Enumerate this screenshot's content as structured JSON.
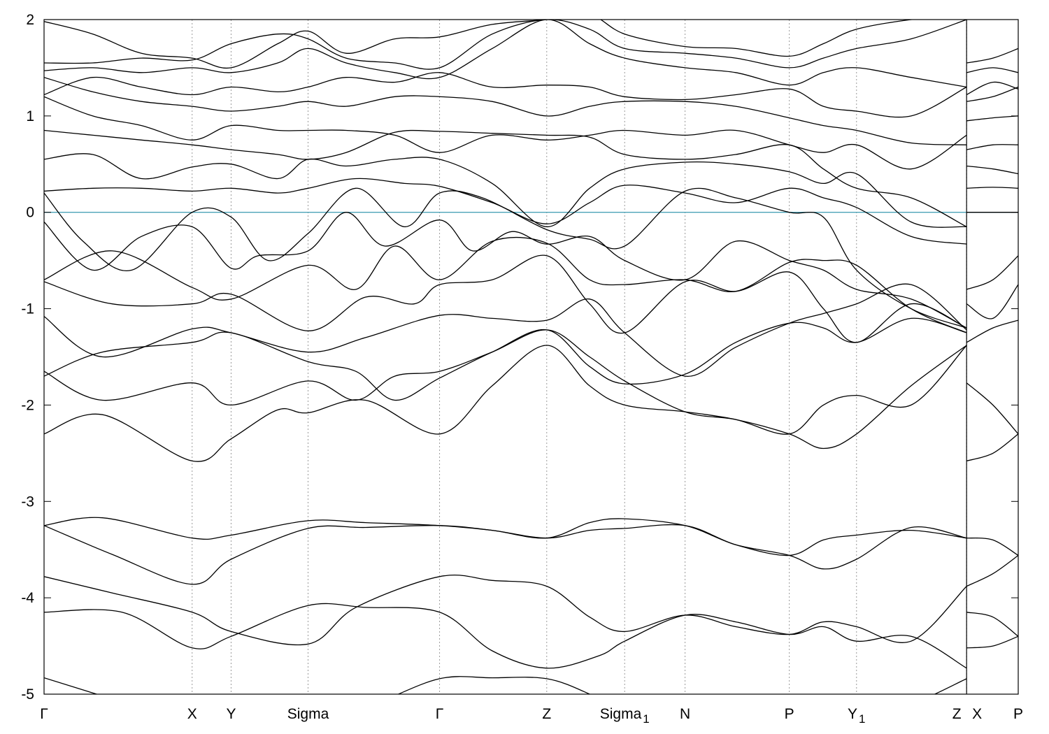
{
  "chart_data": {
    "type": "line",
    "title": "",
    "xlabel": "",
    "ylabel": "",
    "ylim": [
      -5,
      2
    ],
    "yticks": [
      "2",
      "1",
      "0",
      "-1",
      "-2",
      "-3",
      "-4",
      "-5"
    ],
    "xlim": [
      0,
      10.0
    ],
    "kpoints": [
      {
        "label": "Γ",
        "x": 0.0
      },
      {
        "label": "X",
        "x": 1.52
      },
      {
        "label": "Y",
        "x": 1.92
      },
      {
        "label": "Sigma",
        "x": 2.71
      },
      {
        "label": "Γ",
        "x": 4.06
      },
      {
        "label": "Z",
        "x": 5.16
      },
      {
        "label": "Sigma",
        "sub": "1",
        "x": 5.96
      },
      {
        "label": "N",
        "x": 6.58
      },
      {
        "label": "P",
        "x": 7.65
      },
      {
        "label": "Y",
        "sub": "1",
        "x": 8.34
      },
      {
        "label": "Z",
        "x": 9.47
      },
      {
        "label": "X",
        "x": 10.0
      },
      {
        "label": "P",
        "x": 10.0
      }
    ],
    "segment_break_x": 9.47,
    "fermi_level": 0,
    "fermi_color": "#4aa3b8",
    "band_color": "#000000",
    "grid": "vertical dashed at k-points",
    "series": [
      {
        "x": [
          0.0,
          0.7,
          1.52,
          1.92,
          2.71,
          3.4,
          4.06,
          4.6,
          5.16,
          5.6,
          5.96,
          6.58,
          7.2,
          7.65,
          8.0,
          8.34,
          8.9,
          9.47
        ],
        "values": [
          -4.83,
          -5.05,
          -5.3,
          -5.4,
          -5.35,
          -5.1,
          -4.84,
          -4.83,
          -4.84,
          -5.0,
          -5.2,
          -5.4,
          -5.35,
          -5.2,
          -5.15,
          -5.2,
          -5.1,
          -4.84
        ]
      },
      {
        "x": [
          0.0,
          0.8,
          1.52,
          1.92,
          2.71,
          3.3,
          4.06,
          4.6,
          5.16,
          5.7,
          5.96,
          6.58,
          7.1,
          7.65,
          8.0,
          8.34,
          8.9,
          9.47
        ],
        "values": [
          -4.15,
          -4.15,
          -4.52,
          -4.4,
          -4.08,
          -4.1,
          -4.15,
          -4.55,
          -4.73,
          -4.6,
          -4.45,
          -4.18,
          -4.25,
          -4.38,
          -4.3,
          -4.45,
          -4.4,
          -4.73
        ]
      },
      {
        "x": [
          0.0,
          0.7,
          1.52,
          1.92,
          2.71,
          3.2,
          4.06,
          4.6,
          5.16,
          5.6,
          5.96,
          6.58,
          7.1,
          7.65,
          8.0,
          8.34,
          8.9,
          9.47
        ],
        "values": [
          -3.78,
          -3.95,
          -4.15,
          -4.35,
          -4.48,
          -4.1,
          -3.78,
          -3.82,
          -3.88,
          -4.2,
          -4.35,
          -4.18,
          -4.3,
          -4.38,
          -4.25,
          -4.3,
          -4.45,
          -3.88
        ]
      },
      {
        "x": [
          0.0,
          0.7,
          1.52,
          1.92,
          2.71,
          3.3,
          4.06,
          4.6,
          5.16,
          5.6,
          5.96,
          6.58,
          7.1,
          7.65,
          8.0,
          8.34,
          8.9,
          9.47
        ],
        "values": [
          -3.25,
          -3.55,
          -3.86,
          -3.6,
          -3.28,
          -3.27,
          -3.25,
          -3.3,
          -3.38,
          -3.3,
          -3.28,
          -3.25,
          -3.45,
          -3.56,
          -3.4,
          -3.35,
          -3.3,
          -3.38
        ]
      },
      {
        "x": [
          0.0,
          0.6,
          1.52,
          1.92,
          2.71,
          3.3,
          4.06,
          4.6,
          5.16,
          5.6,
          5.96,
          6.58,
          7.1,
          7.65,
          8.0,
          8.34,
          8.9,
          9.47
        ],
        "values": [
          -3.25,
          -3.17,
          -3.38,
          -3.35,
          -3.2,
          -3.22,
          -3.25,
          -3.3,
          -3.38,
          -3.22,
          -3.18,
          -3.25,
          -3.45,
          -3.56,
          -3.7,
          -3.6,
          -3.27,
          -3.38
        ]
      },
      {
        "x": [
          0.0,
          0.6,
          1.52,
          1.92,
          2.4,
          2.71,
          3.3,
          4.06,
          4.6,
          5.16,
          5.6,
          5.96,
          6.58,
          7.1,
          7.65,
          8.0,
          8.34,
          8.9,
          9.47
        ],
        "values": [
          -2.3,
          -2.1,
          -2.58,
          -2.35,
          -2.05,
          -2.08,
          -1.95,
          -2.3,
          -1.8,
          -1.38,
          -1.8,
          -2.0,
          -2.07,
          -2.15,
          -2.3,
          -2.45,
          -2.3,
          -1.8,
          -1.38
        ]
      },
      {
        "x": [
          0.0,
          0.6,
          1.52,
          1.92,
          2.71,
          3.2,
          3.6,
          4.06,
          4.6,
          5.16,
          5.6,
          5.96,
          6.58,
          7.1,
          7.65,
          8.0,
          8.34,
          8.9,
          9.47
        ],
        "values": [
          -1.65,
          -1.95,
          -1.77,
          -2.0,
          -1.75,
          -1.95,
          -1.7,
          -1.65,
          -1.45,
          -1.22,
          -1.5,
          -1.75,
          -2.07,
          -2.15,
          -2.3,
          -2.0,
          -1.9,
          -2.0,
          -1.38
        ]
      },
      {
        "x": [
          0.0,
          0.6,
          1.52,
          1.92,
          2.71,
          3.2,
          3.6,
          4.06,
          4.6,
          5.16,
          5.6,
          5.96,
          6.58,
          7.1,
          7.65,
          8.0,
          8.34,
          8.9,
          9.47
        ],
        "values": [
          -1.7,
          -1.45,
          -1.35,
          -1.25,
          -1.55,
          -1.65,
          -1.95,
          -1.72,
          -1.45,
          -1.22,
          -1.6,
          -1.78,
          -1.68,
          -1.35,
          -1.15,
          -1.2,
          -1.35,
          -1.1,
          -1.25
        ]
      },
      {
        "x": [
          0.0,
          0.6,
          1.52,
          1.92,
          2.71,
          3.3,
          4.06,
          4.6,
          5.16,
          5.6,
          5.96,
          6.58,
          7.1,
          7.65,
          8.0,
          8.34,
          8.9,
          9.47
        ],
        "values": [
          -1.08,
          -1.5,
          -1.21,
          -1.25,
          -1.45,
          -1.3,
          -1.07,
          -1.1,
          -1.12,
          -0.9,
          -1.25,
          -1.7,
          -1.4,
          -1.15,
          -1.05,
          -0.95,
          -0.75,
          -1.22
        ]
      },
      {
        "x": [
          0.0,
          0.7,
          1.52,
          1.92,
          2.71,
          3.3,
          3.8,
          4.06,
          4.6,
          5.16,
          5.6,
          5.96,
          6.58,
          7.1,
          7.65,
          8.0,
          8.34,
          8.9,
          9.47
        ],
        "values": [
          -0.72,
          -0.95,
          -0.95,
          -0.85,
          -1.23,
          -0.88,
          -0.95,
          -0.75,
          -0.7,
          -0.45,
          -0.95,
          -1.25,
          -0.72,
          -0.82,
          -0.62,
          -1.0,
          -1.35,
          -0.95,
          -1.2
        ]
      },
      {
        "x": [
          0.0,
          0.7,
          1.52,
          1.92,
          2.71,
          3.2,
          3.6,
          4.06,
          4.6,
          5.16,
          5.6,
          5.96,
          6.58,
          7.1,
          7.65,
          8.0,
          8.34,
          8.9,
          9.47
        ],
        "values": [
          -0.7,
          -0.4,
          -0.78,
          -0.9,
          -0.55,
          -0.8,
          -0.35,
          -0.7,
          -0.3,
          -0.32,
          -0.7,
          -0.75,
          -0.7,
          -0.82,
          -0.52,
          -0.5,
          -0.55,
          -1.0,
          -1.25
        ]
      },
      {
        "x": [
          0.0,
          0.5,
          1.0,
          1.52,
          1.92,
          2.2,
          2.71,
          3.1,
          3.5,
          4.06,
          4.4,
          4.8,
          5.16,
          5.6,
          5.96,
          6.58,
          7.1,
          7.65,
          8.0,
          8.34,
          8.9,
          9.47
        ],
        "values": [
          -0.1,
          -0.6,
          -0.25,
          -0.15,
          -0.58,
          -0.45,
          -0.4,
          0.0,
          -0.35,
          -0.08,
          -0.4,
          -0.2,
          -0.33,
          -0.25,
          -0.5,
          -0.7,
          -0.3,
          -0.5,
          -0.6,
          -0.8,
          -0.9,
          -1.2
        ]
      },
      {
        "x": [
          0.0,
          0.4,
          0.9,
          1.52,
          1.92,
          2.3,
          2.71,
          3.2,
          3.7,
          4.06,
          4.5,
          5.16,
          5.6,
          5.96,
          6.58,
          7.1,
          7.65,
          8.0,
          8.34,
          8.9,
          9.47
        ],
        "values": [
          0.2,
          -0.3,
          -0.6,
          0.0,
          -0.05,
          -0.5,
          -0.22,
          0.25,
          -0.15,
          0.2,
          0.15,
          -0.18,
          -0.28,
          -0.35,
          0.22,
          0.15,
          0.0,
          -0.05,
          -0.6,
          -1.0,
          -1.2
        ]
      },
      {
        "x": [
          0.0,
          0.5,
          1.0,
          1.52,
          1.92,
          2.4,
          2.71,
          3.2,
          3.7,
          4.06,
          4.6,
          5.16,
          5.6,
          5.96,
          6.58,
          7.1,
          7.65,
          8.0,
          8.34,
          8.9,
          9.47
        ],
        "values": [
          0.22,
          0.25,
          0.25,
          0.22,
          0.25,
          0.2,
          0.25,
          0.35,
          0.3,
          0.27,
          0.1,
          -0.12,
          0.1,
          0.28,
          0.2,
          0.1,
          0.25,
          0.15,
          0.05,
          -0.25,
          -0.33
        ]
      },
      {
        "x": [
          0.0,
          0.5,
          1.0,
          1.52,
          1.92,
          2.4,
          2.71,
          3.1,
          3.6,
          4.06,
          4.6,
          5.16,
          5.6,
          5.96,
          6.58,
          7.1,
          7.65,
          8.0,
          8.34,
          8.9,
          9.47
        ],
        "values": [
          0.55,
          0.6,
          0.35,
          0.47,
          0.5,
          0.35,
          0.55,
          0.48,
          0.55,
          0.55,
          0.3,
          -0.15,
          0.25,
          0.45,
          0.52,
          0.5,
          0.42,
          0.3,
          0.4,
          -0.1,
          -0.15
        ]
      },
      {
        "x": [
          0.0,
          0.5,
          1.0,
          1.52,
          1.92,
          2.4,
          2.71,
          3.1,
          3.6,
          4.06,
          4.6,
          5.16,
          5.6,
          5.96,
          6.58,
          7.1,
          7.65,
          8.0,
          8.34,
          8.9,
          9.47
        ],
        "values": [
          0.85,
          0.8,
          0.75,
          0.7,
          0.65,
          0.6,
          0.55,
          0.62,
          0.83,
          0.84,
          0.82,
          0.8,
          0.78,
          0.6,
          0.55,
          0.6,
          0.7,
          0.45,
          0.25,
          0.15,
          -0.15
        ]
      },
      {
        "x": [
          0.0,
          0.5,
          1.0,
          1.52,
          1.92,
          2.4,
          2.71,
          3.1,
          3.6,
          4.06,
          4.6,
          5.16,
          5.6,
          5.96,
          6.58,
          7.1,
          7.65,
          8.0,
          8.34,
          8.9,
          9.47
        ],
        "values": [
          1.2,
          1.0,
          0.9,
          0.75,
          0.9,
          0.85,
          0.85,
          0.85,
          0.8,
          0.62,
          0.8,
          0.75,
          0.8,
          0.85,
          0.8,
          0.85,
          0.7,
          0.62,
          0.7,
          0.45,
          0.8
        ]
      },
      {
        "x": [
          0.0,
          0.5,
          1.0,
          1.52,
          1.92,
          2.4,
          2.71,
          3.1,
          3.6,
          4.06,
          4.6,
          5.16,
          5.6,
          5.96,
          6.58,
          7.1,
          7.65,
          8.0,
          8.34,
          8.9,
          9.47
        ],
        "values": [
          1.4,
          1.25,
          1.15,
          1.1,
          1.05,
          1.1,
          1.15,
          1.1,
          1.2,
          1.2,
          1.15,
          1.0,
          1.1,
          1.15,
          1.15,
          1.1,
          0.98,
          0.9,
          0.85,
          0.72,
          0.7
        ]
      },
      {
        "x": [
          0.0,
          0.5,
          1.0,
          1.52,
          1.92,
          2.4,
          2.71,
          3.1,
          3.6,
          4.06,
          4.6,
          5.16,
          5.6,
          5.96,
          6.58,
          7.1,
          7.65,
          8.0,
          8.34,
          8.9,
          9.47
        ],
        "values": [
          1.22,
          1.4,
          1.3,
          1.22,
          1.3,
          1.25,
          1.3,
          1.4,
          1.35,
          1.45,
          1.3,
          1.32,
          1.3,
          1.2,
          1.17,
          1.22,
          1.28,
          1.1,
          1.05,
          1.0,
          1.3
        ]
      },
      {
        "x": [
          0.0,
          0.5,
          1.0,
          1.52,
          1.92,
          2.4,
          2.71,
          3.1,
          3.6,
          4.06,
          4.6,
          5.16,
          5.6,
          5.96,
          6.58,
          7.1,
          7.65,
          8.0,
          8.34,
          8.9,
          9.47
        ],
        "values": [
          1.47,
          1.5,
          1.45,
          1.5,
          1.45,
          1.55,
          1.7,
          1.55,
          1.45,
          1.4,
          1.7,
          2.0,
          1.75,
          1.6,
          1.5,
          1.45,
          1.32,
          1.45,
          1.5,
          1.4,
          1.3
        ]
      },
      {
        "x": [
          0.0,
          0.5,
          1.0,
          1.52,
          1.92,
          2.4,
          2.71,
          3.1,
          3.6,
          4.06,
          4.6,
          5.16,
          5.6,
          5.96,
          6.58,
          7.1,
          7.65,
          8.0,
          8.34,
          8.9,
          9.47
        ],
        "values": [
          1.55,
          1.55,
          1.6,
          1.58,
          1.75,
          1.85,
          1.8,
          1.6,
          1.55,
          1.5,
          1.85,
          2.0,
          1.9,
          1.7,
          1.65,
          1.6,
          1.5,
          1.6,
          1.7,
          1.8,
          2.0
        ]
      },
      {
        "x": [
          0.0,
          0.5,
          1.0,
          1.52,
          1.92,
          2.4,
          2.71,
          3.1,
          3.6,
          4.06,
          4.6,
          5.16,
          5.6,
          5.96,
          6.58,
          7.1,
          7.65,
          8.0,
          8.34,
          8.9,
          9.47
        ],
        "values": [
          1.98,
          1.85,
          1.65,
          1.6,
          1.5,
          1.75,
          1.88,
          1.65,
          1.8,
          1.82,
          1.95,
          2.0,
          2.05,
          1.85,
          1.72,
          1.7,
          1.62,
          1.75,
          1.9,
          2.0,
          2.05
        ]
      }
    ],
    "side_panel": {
      "x": [
        9.47,
        9.74,
        10.0
      ],
      "series": [
        [
          -4.52,
          -4.5,
          -4.4
        ],
        [
          -4.15,
          -4.2,
          -4.4
        ],
        [
          -3.88,
          -3.75,
          -3.56
        ],
        [
          -3.38,
          -3.4,
          -3.56
        ],
        [
          -2.58,
          -2.5,
          -2.3
        ],
        [
          -1.77,
          -2.0,
          -2.3
        ],
        [
          -1.35,
          -1.2,
          -1.12
        ],
        [
          -0.95,
          -1.1,
          -0.75
        ],
        [
          -0.8,
          -0.7,
          -0.45
        ],
        [
          0.0,
          0.0,
          0.0
        ],
        [
          0.25,
          0.26,
          0.25
        ],
        [
          0.48,
          0.45,
          0.4
        ],
        [
          0.65,
          0.7,
          0.7
        ],
        [
          0.95,
          0.98,
          1.0
        ],
        [
          1.15,
          1.2,
          1.3
        ],
        [
          1.22,
          1.35,
          1.28
        ],
        [
          1.45,
          1.5,
          1.45
        ],
        [
          1.55,
          1.6,
          1.7
        ]
      ]
    }
  }
}
